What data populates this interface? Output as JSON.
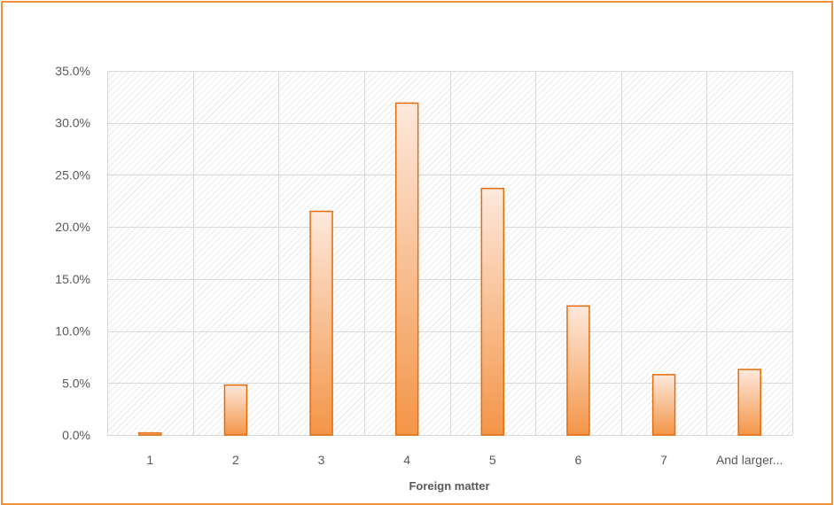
{
  "chart_data": {
    "type": "bar",
    "title": "",
    "xlabel": "Foreign matter",
    "ylabel": "",
    "categories": [
      "1",
      "2",
      "3",
      "4",
      "5",
      "6",
      "7",
      "And larger..."
    ],
    "values": [
      0.2,
      4.8,
      21.5,
      31.9,
      23.7,
      12.4,
      5.8,
      6.3
    ],
    "ylim": [
      0,
      35
    ],
    "yticks": [
      "0.0%",
      "5.0%",
      "10.0%",
      "15.0%",
      "20.0%",
      "25.0%",
      "30.0%",
      "35.0%"
    ],
    "grid": true,
    "legend": "none",
    "colors": {
      "bar_top": "#fde9dc",
      "bar_bottom": "#f39548",
      "bar_border": "#e46c0a",
      "frame": "#f0923a",
      "grid": "#d9d9d9"
    }
  }
}
